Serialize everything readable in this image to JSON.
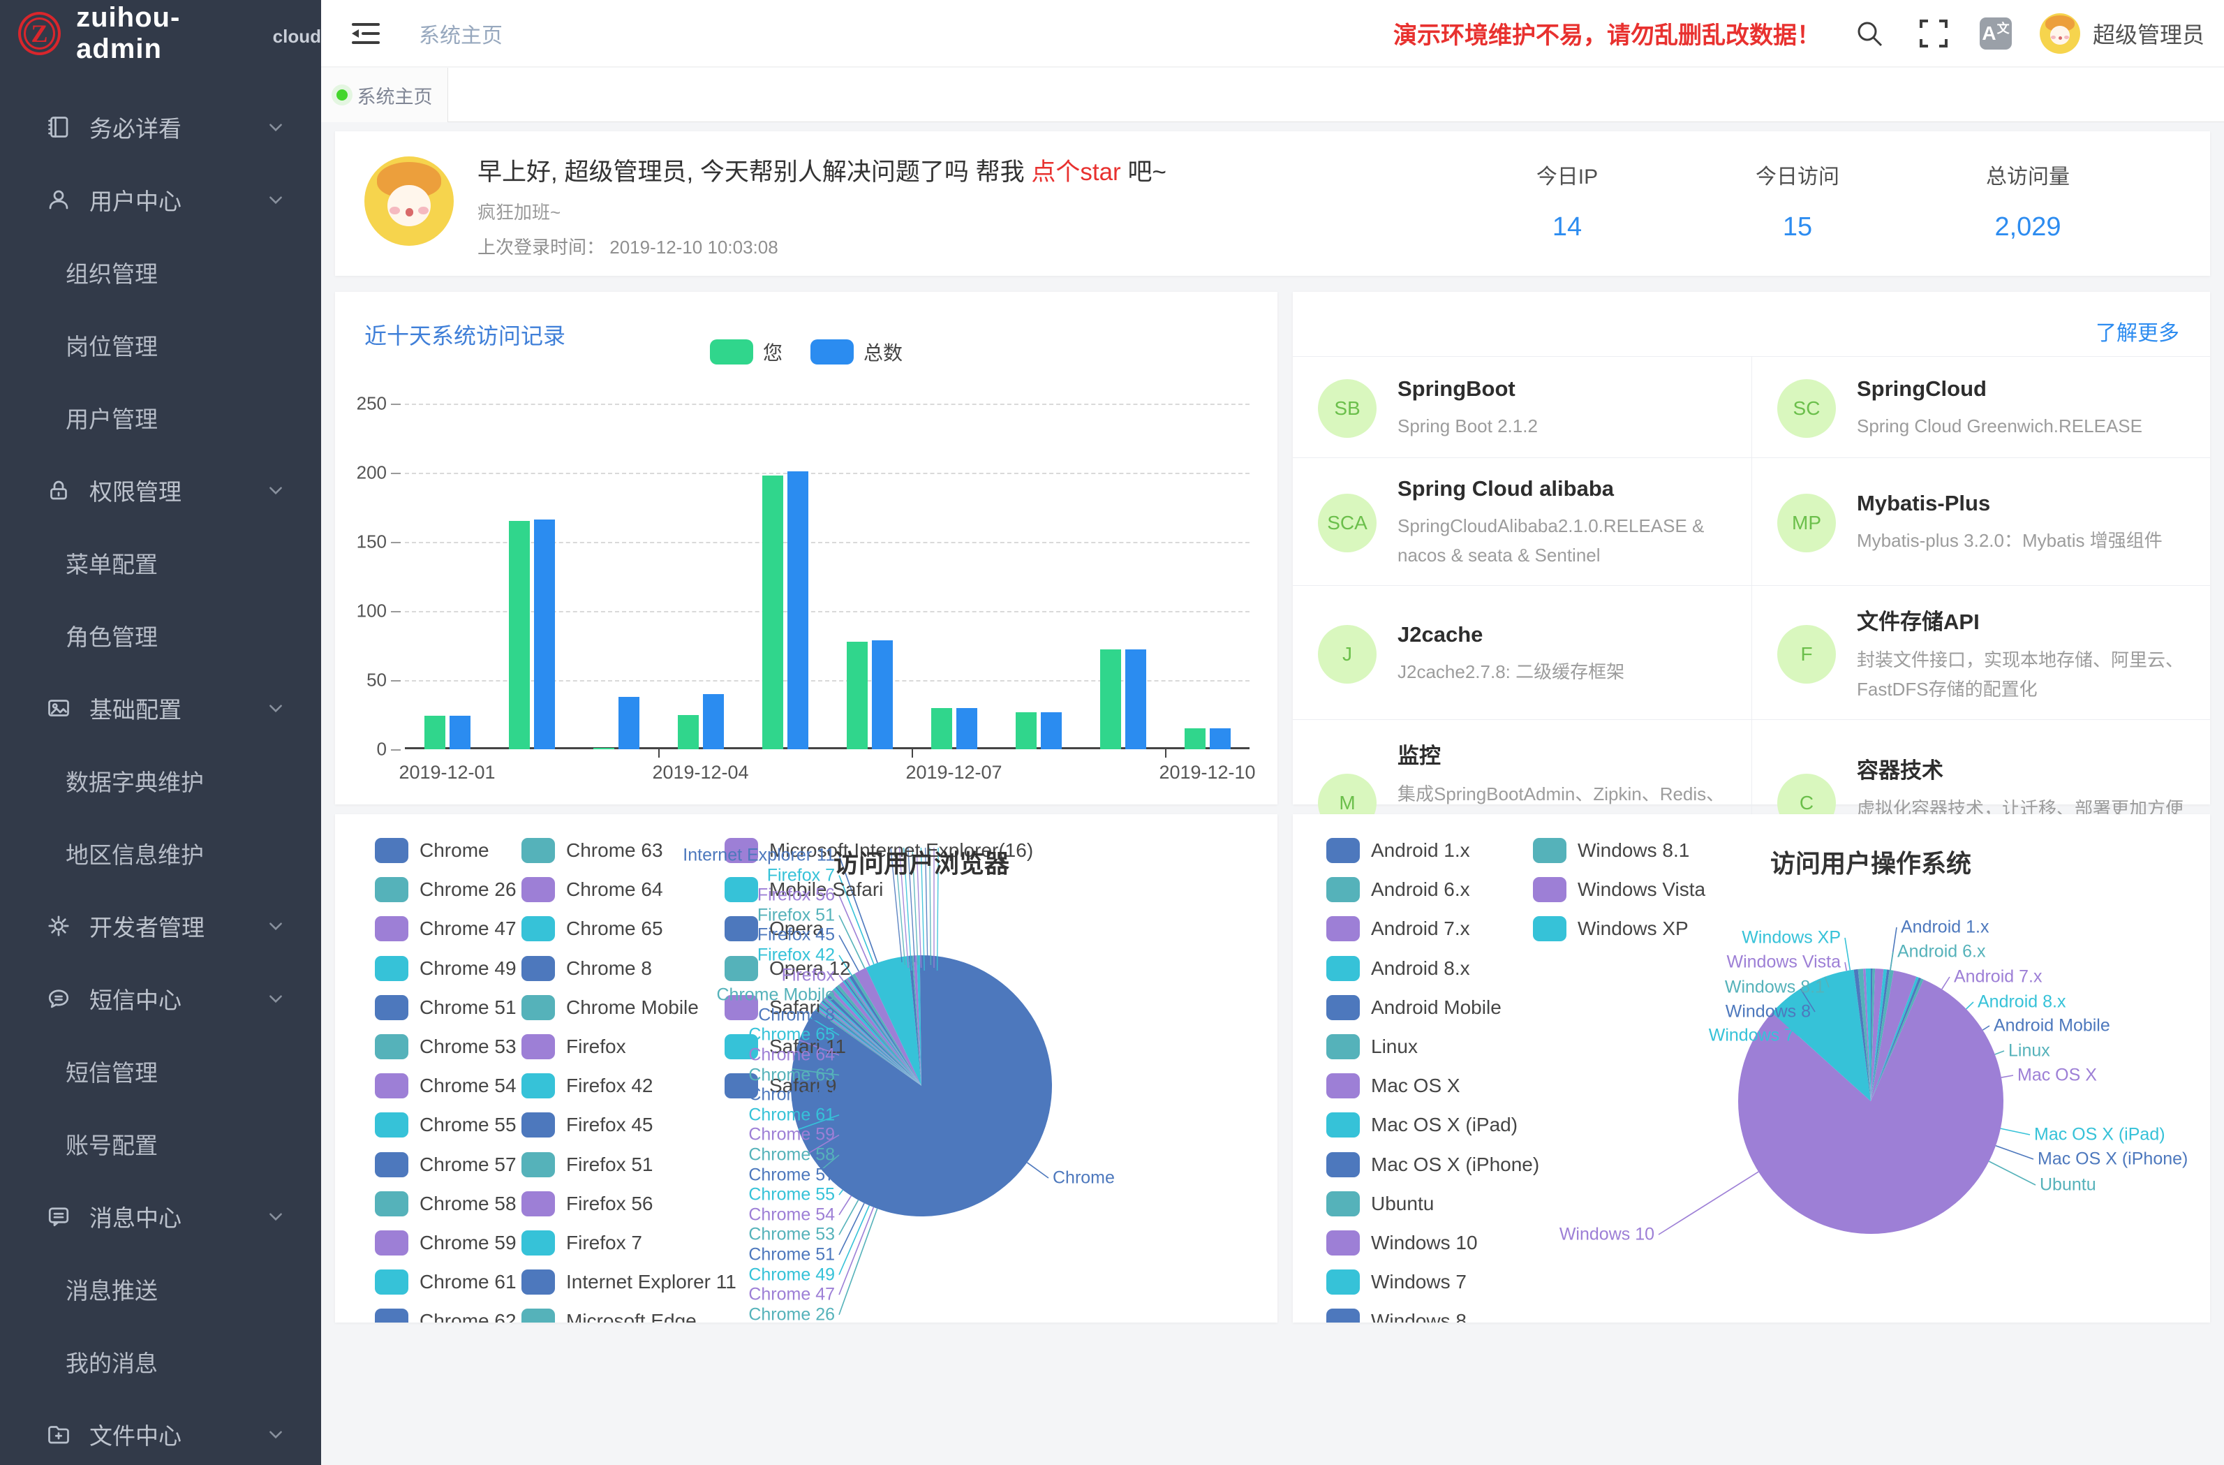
{
  "app": {
    "logo_text": "zuihou-admin",
    "logo_badge": "cloud"
  },
  "palette": {
    "bar_green": "#30d68c",
    "bar_blue": "#2b8cf0",
    "pie": [
      "#4d78bd",
      "#55b2ba",
      "#9d7fd6",
      "#36c2d8"
    ],
    "accent_blue": "#2d8cf0",
    "danger": "#e8312f",
    "tech_avatar_bg": "#d9f7be",
    "tech_avatar_text": "#6bbf4b"
  },
  "sidebar": {
    "items": [
      {
        "icon": "notebook-icon",
        "label": "务必详看",
        "children": []
      },
      {
        "icon": "user-icon",
        "label": "用户中心",
        "children": [
          "组织管理",
          "岗位管理",
          "用户管理"
        ]
      },
      {
        "icon": "lock-icon",
        "label": "权限管理",
        "children": [
          "菜单配置",
          "角色管理"
        ]
      },
      {
        "icon": "picture-icon",
        "label": "基础配置",
        "children": [
          "数据字典维护",
          "地区信息维护"
        ]
      },
      {
        "icon": "gear-icon",
        "label": "开发者管理",
        "children": []
      },
      {
        "icon": "sms-icon",
        "label": "短信中心",
        "children": [
          "短信管理",
          "账号配置"
        ]
      },
      {
        "icon": "message-icon",
        "label": "消息中心",
        "children": [
          "消息推送",
          "我的消息"
        ]
      },
      {
        "icon": "folder-icon",
        "label": "文件中心",
        "children": []
      }
    ]
  },
  "header": {
    "breadcrumb": "系统主页",
    "warning": "演示环境维护不易，请勿乱删乱改数据！",
    "username": "超级管理员"
  },
  "tabs": [
    {
      "label": "系统主页",
      "active": true
    }
  ],
  "welcome": {
    "greeting_prefix": "早上好, 超级管理员, 今天帮别人解决问题了吗 帮我 ",
    "star_link": "点个star",
    "greeting_suffix": " 吧~",
    "subtitle": "疯狂加班~",
    "last_login_label": "上次登录时间：",
    "last_login_time": "2019-12-10 10:03:08"
  },
  "stats": [
    {
      "label": "今日IP",
      "value": "14"
    },
    {
      "label": "今日访问",
      "value": "15"
    },
    {
      "label": "总访问量",
      "value": "2,029"
    }
  ],
  "tech": {
    "more": "了解更多",
    "cards": [
      {
        "abbr": "SB",
        "title": "SpringBoot",
        "desc": "Spring Boot 2.1.2"
      },
      {
        "abbr": "SC",
        "title": "SpringCloud",
        "desc": "Spring Cloud Greenwich.RELEASE"
      },
      {
        "abbr": "SCA",
        "title": "Spring Cloud alibaba",
        "desc": "SpringCloudAlibaba2.1.0.RELEASE & nacos & seata & Sentinel"
      },
      {
        "abbr": "MP",
        "title": "Mybatis-Plus",
        "desc": "Mybatis-plus 3.2.0：Mybatis 增强组件"
      },
      {
        "abbr": "J",
        "title": "J2cache",
        "desc": "J2cache2.7.8: 二级缓存框架"
      },
      {
        "abbr": "F",
        "title": "文件存储API",
        "desc": "封装文件接口，实现本地存储、阿里云、FastDFS存储的配置化"
      },
      {
        "abbr": "M",
        "title": "监控",
        "desc": "集成SpringBootAdmin、Zipkin、Redis、Mysql、定时任务等监控，对系统进行全方位监控护航"
      },
      {
        "abbr": "C",
        "title": "容器技术",
        "desc": "虚拟化容器技术，让迁移、部署更加方便快捷"
      }
    ]
  },
  "chart_data": [
    {
      "id": "visits",
      "type": "bar",
      "title": "近十天系统访问记录",
      "categories": [
        "2019-12-01",
        "2019-12-02",
        "2019-12-03",
        "2019-12-04",
        "2019-12-05",
        "2019-12-06",
        "2019-12-07",
        "2019-12-08",
        "2019-12-09",
        "2019-12-10"
      ],
      "series": [
        {
          "name": "您",
          "color_key": "bar_green",
          "values": [
            24,
            165,
            1,
            25,
            198,
            78,
            30,
            27,
            72,
            15
          ]
        },
        {
          "name": "总数",
          "color_key": "bar_blue",
          "values": [
            24,
            166,
            38,
            40,
            201,
            79,
            30,
            27,
            72,
            15
          ]
        }
      ],
      "xlabel": "",
      "ylabel": "",
      "ylim": [
        0,
        250
      ],
      "yticks": [
        0,
        50,
        100,
        150,
        200,
        250
      ],
      "x_tick_labels": [
        "2019-12-01",
        "2019-12-04",
        "2019-12-07",
        "2019-12-10"
      ],
      "grid": "dashed-horizontal",
      "legend_position": "top"
    },
    {
      "id": "browsers",
      "type": "pie",
      "title": "访问用户浏览器",
      "slices": [
        {
          "name": "Chrome",
          "value": 437
        },
        {
          "name": "Chrome 26",
          "value": 1
        },
        {
          "name": "Chrome 47",
          "value": 1
        },
        {
          "name": "Chrome 49",
          "value": 1
        },
        {
          "name": "Chrome 51",
          "value": 1
        },
        {
          "name": "Chrome 53",
          "value": 1
        },
        {
          "name": "Chrome 54",
          "value": 1
        },
        {
          "name": "Chrome 55",
          "value": 1
        },
        {
          "name": "Chrome 57",
          "value": 1
        },
        {
          "name": "Chrome 58",
          "value": 1
        },
        {
          "name": "Chrome 59",
          "value": 1
        },
        {
          "name": "Chrome 61",
          "value": 1
        },
        {
          "name": "Chrome 62",
          "value": 2
        },
        {
          "name": "Chrome 63",
          "value": 2
        },
        {
          "name": "Chrome 64",
          "value": 2
        },
        {
          "name": "Chrome 65",
          "value": 2
        },
        {
          "name": "Chrome 8",
          "value": 1
        },
        {
          "name": "Chrome Mobile",
          "value": 2
        },
        {
          "name": "Firefox",
          "value": 3
        },
        {
          "name": "Firefox 42",
          "value": 1
        },
        {
          "name": "Firefox 45",
          "value": 1
        },
        {
          "name": "Firefox 51",
          "value": 1
        },
        {
          "name": "Firefox 56",
          "value": 1
        },
        {
          "name": "Firefox 7",
          "value": 1
        },
        {
          "name": "Internet Explorer 11",
          "value": 2
        },
        {
          "name": "Microsoft Edge",
          "value": 2
        },
        {
          "name": "Microsoft Internet Explorer(16)",
          "value": 8
        },
        {
          "name": "Mobile Safari",
          "value": 28
        },
        {
          "name": "Opera",
          "value": 2
        },
        {
          "name": "Opera 12",
          "value": 1
        },
        {
          "name": "Safari",
          "value": 2
        },
        {
          "name": "Safari 11",
          "value": 2
        },
        {
          "name": "Safari 9",
          "value": 1
        }
      ],
      "legend_columns": [
        13,
        13,
        7
      ],
      "callouts_left": [
        "Internet Explorer 11",
        "Firefox 7",
        "Firefox 56",
        "Firefox 51",
        "Firefox 45",
        "Firefox 42",
        "Firefox",
        "Chrome Mobile",
        "Chrome 8",
        "Chrome 65",
        "Chrome 64",
        "Chrome 63",
        "Chrome 62",
        "Chrome 61",
        "Chrome 59",
        "Chrome 58",
        "Chrome 57",
        "Chrome 55",
        "Chrome 54",
        "Chrome 53",
        "Chrome 51",
        "Chrome 49",
        "Chrome 47",
        "Chrome 26"
      ],
      "callouts_right": [
        "Chrome"
      ],
      "legend_position": "left",
      "values_estimated": true
    },
    {
      "id": "os",
      "type": "pie",
      "title": "访问用户操作系统",
      "slices": [
        {
          "name": "Android 1.x",
          "value": 4
        },
        {
          "name": "Android 6.x",
          "value": 6
        },
        {
          "name": "Android 7.x",
          "value": 20
        },
        {
          "name": "Android 8.x",
          "value": 8
        },
        {
          "name": "Android Mobile",
          "value": 6
        },
        {
          "name": "Linux",
          "value": 10
        },
        {
          "name": "Mac OS X",
          "value": 55
        },
        {
          "name": "Mac OS X (iPad)",
          "value": 6
        },
        {
          "name": "Mac OS X (iPhone)",
          "value": 6
        },
        {
          "name": "Ubuntu",
          "value": 6
        },
        {
          "name": "Windows 10",
          "value": 1562
        },
        {
          "name": "Windows 7",
          "value": 220
        },
        {
          "name": "Windows 8",
          "value": 10
        },
        {
          "name": "Windows 8.1",
          "value": 12
        },
        {
          "name": "Windows Vista",
          "value": 6
        },
        {
          "name": "Windows XP",
          "value": 12
        }
      ],
      "legend_columns": [
        13,
        3
      ],
      "callouts_left": [
        "Windows XP",
        "Windows Vista",
        "Windows 8.1",
        "Windows 8",
        "Windows 7",
        "Windows 10"
      ],
      "callouts_right": [
        "Android 1.x",
        "Android 6.x",
        "Android 7.x",
        "Android 8.x",
        "Android Mobile",
        "Linux",
        "Mac OS X",
        "Mac OS X (iPad)",
        "Mac OS X (iPhone)",
        "Ubuntu"
      ],
      "legend_position": "left",
      "values_estimated": true
    }
  ]
}
